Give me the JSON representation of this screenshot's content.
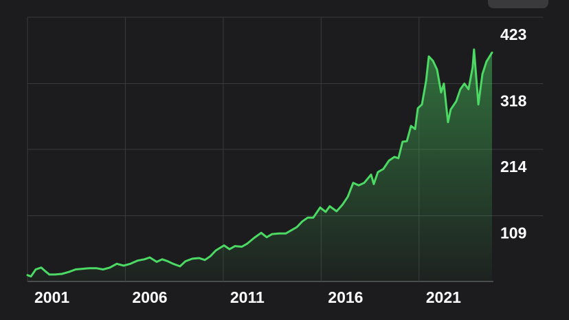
{
  "chart_data": {
    "type": "line",
    "color": "#4cd964",
    "grid": true,
    "x": [
      2001.0,
      2001.18,
      2001.42,
      2001.7,
      2001.88,
      2002.12,
      2002.4,
      2002.76,
      2003.11,
      2003.46,
      2003.81,
      2004.16,
      2004.51,
      2004.86,
      2005.21,
      2005.56,
      2005.91,
      2006.26,
      2006.62,
      2006.97,
      2007.25,
      2007.6,
      2007.88,
      2008.16,
      2008.44,
      2008.79,
      2009.07,
      2009.42,
      2009.77,
      2010.06,
      2010.34,
      2010.62,
      2011.04,
      2011.32,
      2011.6,
      2011.95,
      2012.23,
      2012.58,
      2012.94,
      2013.22,
      2013.5,
      2013.85,
      2014.2,
      2014.48,
      2014.76,
      2015.04,
      2015.32,
      2015.6,
      2015.95,
      2016.23,
      2016.44,
      2016.79,
      2017.08,
      2017.36,
      2017.64,
      2017.92,
      2018.2,
      2018.55,
      2018.69,
      2018.9,
      2019.18,
      2019.46,
      2019.74,
      2019.95,
      2020.16,
      2020.38,
      2020.59,
      2020.8,
      2020.94,
      2021.15,
      2021.36,
      2021.5,
      2021.71,
      2021.92,
      2022.13,
      2022.27,
      2022.48,
      2022.62,
      2022.9,
      2023.11,
      2023.32,
      2023.53,
      2023.74,
      2023.81,
      2024.03,
      2024.24,
      2024.45,
      2024.73
    ],
    "values": [
      15,
      13,
      24,
      27,
      22,
      16,
      16,
      17,
      20,
      24,
      25,
      26,
      26,
      24,
      27,
      33,
      30,
      33,
      38,
      40,
      43,
      36,
      40,
      37,
      33,
      29,
      37,
      41,
      42,
      39,
      45,
      54,
      62,
      56,
      61,
      60,
      65,
      74,
      82,
      75,
      80,
      81,
      81,
      86,
      91,
      100,
      106,
      106,
      122,
      115,
      124,
      116,
      126,
      139,
      161,
      157,
      161,
      174,
      159,
      178,
      183,
      196,
      202,
      200,
      226,
      227,
      251,
      246,
      279,
      285,
      322,
      361,
      354,
      340,
      304,
      318,
      257,
      277,
      290,
      309,
      318,
      309,
      344,
      372,
      285,
      333,
      353,
      367
    ],
    "xlim": [
      2001,
      2024.8
    ],
    "xticks": [
      2001,
      2006,
      2011,
      2016,
      2021
    ],
    "ylim": [
      5,
      423
    ],
    "yticks": [
      423,
      318,
      214,
      109
    ]
  }
}
